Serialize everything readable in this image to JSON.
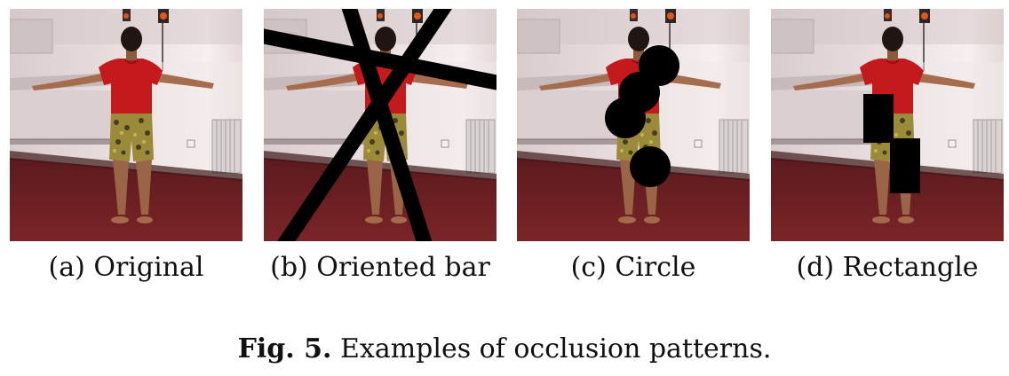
{
  "figure": {
    "label": "Fig. 5.",
    "caption": "Examples of occlusion patterns."
  },
  "panels": [
    {
      "caption": "(a) Original",
      "occlusion": "none"
    },
    {
      "caption": "(b) Oriented bar",
      "occlusion": "oriented-bar"
    },
    {
      "caption": "(c) Circle",
      "occlusion": "circle"
    },
    {
      "caption": "(d) Rectangle",
      "occlusion": "rectangle"
    }
  ],
  "colors": {
    "wall": "#e3d6d6",
    "floor": "#6e1e22",
    "shirt": "#c41a1e",
    "occluder": "#000000"
  }
}
